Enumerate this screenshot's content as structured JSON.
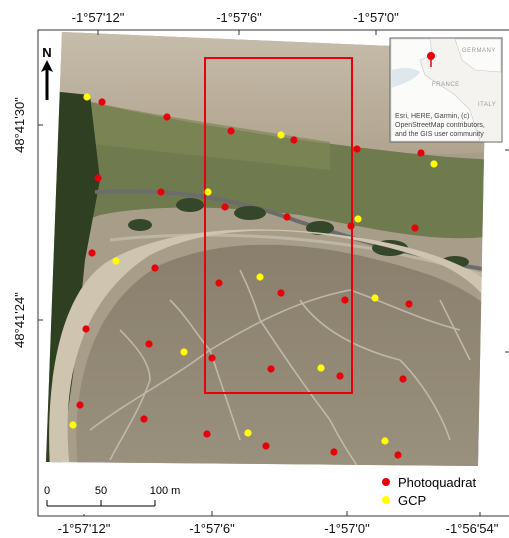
{
  "axes": {
    "top_ticks": [
      "-1°57'12\"",
      "-1°57'6\"",
      "-1°57'0\""
    ],
    "bottom_ticks": [
      "-1°57'12\"",
      "-1°57'6\"",
      "-1°57'0\"",
      "-1°56'54\""
    ],
    "left_ticks": [
      "48°41'30\"",
      "48°41'24\""
    ]
  },
  "north_arrow": {
    "label": "N"
  },
  "scale_bar": {
    "labels": [
      "0",
      "50",
      "100 m"
    ]
  },
  "legend": {
    "items": [
      {
        "label": "Photoquadrat",
        "color": "#e8000b"
      },
      {
        "label": "GCP",
        "color": "#ffff00"
      }
    ]
  },
  "inset": {
    "labels": [
      "GERMANY",
      "FRANCE",
      "ITALY"
    ],
    "attribution": [
      "Esri, HERE, Garmin, (c)",
      "OpenStreetMap contributors,",
      "and the GIS user community"
    ],
    "marker_color": "#e8000b"
  },
  "highlight_color": "#e8000b"
}
